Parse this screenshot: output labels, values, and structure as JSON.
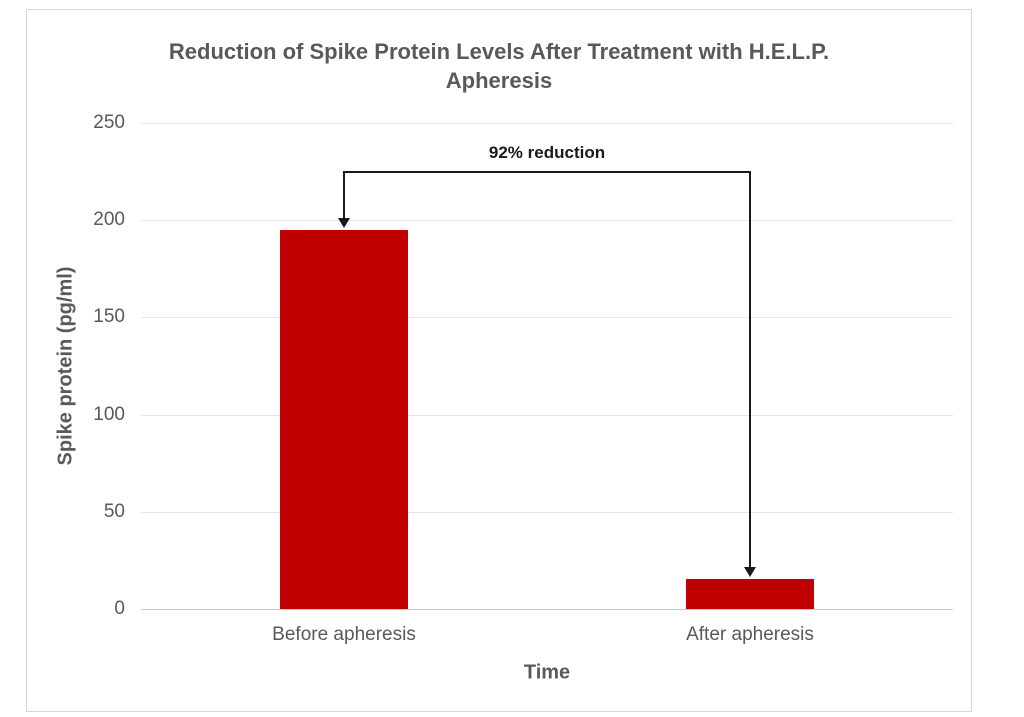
{
  "chart_data": {
    "type": "bar",
    "title": "Reduction of Spike Protein Levels After Treatment with H.E.L.P. Apheresis",
    "categories": [
      "Before apheresis",
      "After apheresis"
    ],
    "values": [
      195,
      15.6
    ],
    "xlabel": "Time",
    "ylabel": "Spike protein (pg/ml)",
    "ylim": [
      0,
      250
    ],
    "yticks": [
      0,
      50,
      100,
      150,
      200,
      250
    ],
    "grid": true,
    "legend": false,
    "bar_color": "#C00000",
    "text_color": "#595959",
    "annotation": {
      "label": "92% reduction",
      "from_category": "Before apheresis",
      "to_category": "After apheresis"
    }
  }
}
